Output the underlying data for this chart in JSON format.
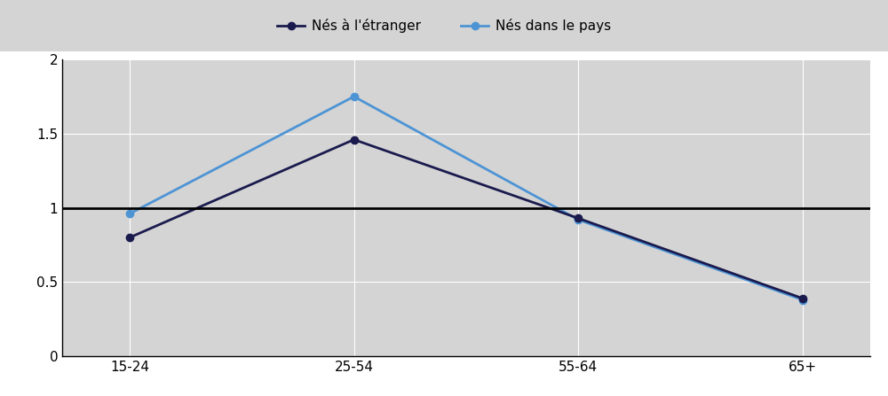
{
  "categories": [
    "15-24",
    "25-54",
    "55-64",
    "65+"
  ],
  "series": [
    {
      "label": "Nés à l'étranger",
      "values": [
        0.8,
        1.46,
        0.93,
        0.39
      ],
      "color": "#1a1a4e",
      "marker": "o",
      "markersize": 6,
      "linewidth": 2.0,
      "zorder": 3
    },
    {
      "label": "Nés dans le pays",
      "values": [
        0.96,
        1.75,
        0.92,
        0.38
      ],
      "color": "#4d94d5",
      "marker": "o",
      "markersize": 6,
      "linewidth": 2.0,
      "zorder": 2
    }
  ],
  "ylim": [
    0,
    2
  ],
  "yticks": [
    0,
    0.5,
    1,
    1.5,
    2
  ],
  "ytick_labels": [
    "0",
    "0.5",
    "1",
    "1.5",
    "2"
  ],
  "hline_y": 1.0,
  "hline_color": "#000000",
  "hline_linewidth": 2.0,
  "plot_bg_color": "#d4d4d4",
  "fig_bg_color": "#ffffff",
  "legend_bg_color": "#d4d4d4",
  "grid_color": "#ffffff",
  "grid_linewidth": 0.8,
  "tick_fontsize": 11,
  "legend_fontsize": 11,
  "spine_color": "#000000"
}
